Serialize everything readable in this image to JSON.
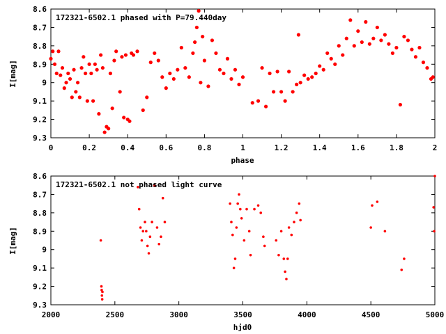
{
  "colors": {
    "points": "#ff0000",
    "frame": "#000000",
    "background": "#ffffff"
  },
  "chart_data": [
    {
      "type": "scatter",
      "title": "172321-6502.1 phased with P=79.440day",
      "xlabel": "phase",
      "ylabel": "I[mag]",
      "xlim": [
        0,
        2
      ],
      "ylim": [
        9.3,
        8.6
      ],
      "y_inverted": true,
      "grid": false,
      "x_ticks": [
        "0",
        "0.2",
        "0.4",
        "0.6",
        "0.8",
        "1",
        "1.2",
        "1.4",
        "1.6",
        "1.8",
        "2"
      ],
      "y_ticks": [
        "8.6",
        "8.7",
        "8.8",
        "8.9",
        "9",
        "9.1",
        "9.2",
        "9.3"
      ],
      "series": [
        {
          "points": [
            [
              0.0,
              8.87
            ],
            [
              0.01,
              8.83
            ],
            [
              0.02,
              8.9
            ],
            [
              0.03,
              8.95
            ],
            [
              0.04,
              8.83
            ],
            [
              0.05,
              8.96
            ],
            [
              0.06,
              8.92
            ],
            [
              0.07,
              9.03
            ],
            [
              0.08,
              9.0
            ],
            [
              0.09,
              8.95
            ],
            [
              0.1,
              8.98
            ],
            [
              0.11,
              9.08
            ],
            [
              0.12,
              8.93
            ],
            [
              0.13,
              9.05
            ],
            [
              0.14,
              9.0
            ],
            [
              0.15,
              9.08
            ],
            [
              0.16,
              8.92
            ],
            [
              0.17,
              8.86
            ],
            [
              0.18,
              8.95
            ],
            [
              0.19,
              9.1
            ],
            [
              0.2,
              8.9
            ],
            [
              0.21,
              8.95
            ],
            [
              0.22,
              9.1
            ],
            [
              0.23,
              8.9
            ],
            [
              0.24,
              8.93
            ],
            [
              0.25,
              9.17
            ],
            [
              0.26,
              8.85
            ],
            [
              0.27,
              8.92
            ],
            [
              0.28,
              9.27
            ],
            [
              0.29,
              9.24
            ],
            [
              0.3,
              9.25
            ],
            [
              0.31,
              8.95
            ],
            [
              0.32,
              9.14
            ],
            [
              0.33,
              8.88
            ],
            [
              0.34,
              8.83
            ],
            [
              0.36,
              9.05
            ],
            [
              0.37,
              8.86
            ],
            [
              0.38,
              9.19
            ],
            [
              0.39,
              8.85
            ],
            [
              0.4,
              9.2
            ],
            [
              0.41,
              9.21
            ],
            [
              0.42,
              8.84
            ],
            [
              0.43,
              8.85
            ],
            [
              0.45,
              8.83
            ],
            [
              0.48,
              9.15
            ],
            [
              0.5,
              9.08
            ],
            [
              0.52,
              8.89
            ],
            [
              0.54,
              8.84
            ],
            [
              0.56,
              8.88
            ],
            [
              0.58,
              8.97
            ],
            [
              0.6,
              9.03
            ],
            [
              0.62,
              8.95
            ],
            [
              0.64,
              8.98
            ],
            [
              0.66,
              8.93
            ],
            [
              0.68,
              8.81
            ],
            [
              0.7,
              8.92
            ],
            [
              0.72,
              8.97
            ],
            [
              0.74,
              8.84
            ],
            [
              0.75,
              8.78
            ],
            [
              0.76,
              8.7
            ],
            [
              0.77,
              8.61
            ],
            [
              0.78,
              9.0
            ],
            [
              0.79,
              8.75
            ],
            [
              0.8,
              8.88
            ],
            [
              0.82,
              9.02
            ],
            [
              0.84,
              8.77
            ],
            [
              0.86,
              8.84
            ],
            [
              0.88,
              8.93
            ],
            [
              0.9,
              8.95
            ],
            [
              0.92,
              8.87
            ],
            [
              0.94,
              8.98
            ],
            [
              0.96,
              8.93
            ],
            [
              0.98,
              9.01
            ],
            [
              1.0,
              8.97
            ],
            [
              1.05,
              9.11
            ],
            [
              1.08,
              9.1
            ],
            [
              1.1,
              8.92
            ],
            [
              1.12,
              9.13
            ],
            [
              1.14,
              8.95
            ],
            [
              1.16,
              9.05
            ],
            [
              1.18,
              8.94
            ],
            [
              1.2,
              9.05
            ],
            [
              1.22,
              9.1
            ],
            [
              1.24,
              8.94
            ],
            [
              1.26,
              9.05
            ],
            [
              1.28,
              9.01
            ],
            [
              1.29,
              8.74
            ],
            [
              1.3,
              9.0
            ],
            [
              1.32,
              8.96
            ],
            [
              1.34,
              8.98
            ],
            [
              1.36,
              8.97
            ],
            [
              1.38,
              8.95
            ],
            [
              1.4,
              8.91
            ],
            [
              1.42,
              8.93
            ],
            [
              1.44,
              8.84
            ],
            [
              1.46,
              8.87
            ],
            [
              1.48,
              8.9
            ],
            [
              1.5,
              8.8
            ],
            [
              1.52,
              8.85
            ],
            [
              1.54,
              8.76
            ],
            [
              1.56,
              8.66
            ],
            [
              1.58,
              8.8
            ],
            [
              1.6,
              8.72
            ],
            [
              1.62,
              8.78
            ],
            [
              1.64,
              8.67
            ],
            [
              1.66,
              8.79
            ],
            [
              1.68,
              8.76
            ],
            [
              1.7,
              8.7
            ],
            [
              1.72,
              8.77
            ],
            [
              1.74,
              8.74
            ],
            [
              1.76,
              8.79
            ],
            [
              1.78,
              8.84
            ],
            [
              1.8,
              8.81
            ],
            [
              1.82,
              9.12
            ],
            [
              1.84,
              8.75
            ],
            [
              1.86,
              8.77
            ],
            [
              1.88,
              8.82
            ],
            [
              1.9,
              8.86
            ],
            [
              1.92,
              8.81
            ],
            [
              1.94,
              8.89
            ],
            [
              1.96,
              8.92
            ],
            [
              1.98,
              8.98
            ],
            [
              1.99,
              8.97
            ]
          ]
        }
      ]
    },
    {
      "type": "scatter",
      "title": "172321-6502.1 not phased light curve",
      "xlabel": "hjd0",
      "ylabel": "I[mag]",
      "xlim": [
        2000,
        5000
      ],
      "ylim": [
        9.3,
        8.6
      ],
      "y_inverted": true,
      "grid": false,
      "x_ticks": [
        "2000",
        "2500",
        "3000",
        "3500",
        "4000",
        "4500",
        "5000"
      ],
      "y_ticks": [
        "8.6",
        "8.7",
        "8.8",
        "8.9",
        "9",
        "9.1",
        "9.2",
        "9.3"
      ],
      "series": [
        {
          "points": [
            [
              2390,
              8.95
            ],
            [
              2395,
              9.2
            ],
            [
              2397,
              9.22
            ],
            [
              2399,
              9.25
            ],
            [
              2401,
              9.27
            ],
            [
              2403,
              9.23
            ],
            [
              2680,
              8.66
            ],
            [
              2690,
              8.78
            ],
            [
              2700,
              8.88
            ],
            [
              2710,
              8.95
            ],
            [
              2720,
              8.9
            ],
            [
              2735,
              8.85
            ],
            [
              2745,
              8.9
            ],
            [
              2755,
              8.98
            ],
            [
              2765,
              9.02
            ],
            [
              2775,
              8.93
            ],
            [
              2790,
              8.85
            ],
            [
              2810,
              8.65
            ],
            [
              2830,
              8.88
            ],
            [
              2845,
              8.97
            ],
            [
              2860,
              8.93
            ],
            [
              2875,
              8.72
            ],
            [
              2890,
              8.85
            ],
            [
              3400,
              8.75
            ],
            [
              3410,
              8.85
            ],
            [
              3420,
              8.92
            ],
            [
              3430,
              9.1
            ],
            [
              3440,
              9.05
            ],
            [
              3450,
              8.88
            ],
            [
              3460,
              8.75
            ],
            [
              3470,
              8.7
            ],
            [
              3480,
              8.78
            ],
            [
              3490,
              8.83
            ],
            [
              3510,
              8.95
            ],
            [
              3530,
              8.78
            ],
            [
              3550,
              8.9
            ],
            [
              3560,
              9.03
            ],
            [
              3590,
              8.78
            ],
            [
              3620,
              8.76
            ],
            [
              3640,
              8.8
            ],
            [
              3660,
              8.93
            ],
            [
              3670,
              8.98
            ],
            [
              3760,
              8.95
            ],
            [
              3780,
              9.03
            ],
            [
              3800,
              8.9
            ],
            [
              3820,
              9.05
            ],
            [
              3830,
              9.12
            ],
            [
              3840,
              9.16
            ],
            [
              3850,
              9.05
            ],
            [
              3860,
              8.88
            ],
            [
              3880,
              8.92
            ],
            [
              3900,
              8.85
            ],
            [
              3920,
              8.8
            ],
            [
              3940,
              8.75
            ],
            [
              3950,
              8.84
            ],
            [
              4500,
              8.88
            ],
            [
              4510,
              8.76
            ],
            [
              4550,
              8.74
            ],
            [
              4610,
              8.9
            ],
            [
              4740,
              9.11
            ],
            [
              4760,
              9.05
            ],
            [
              4990,
              8.77
            ],
            [
              5000,
              8.6
            ],
            [
              4995,
              8.9
            ]
          ]
        }
      ]
    }
  ]
}
